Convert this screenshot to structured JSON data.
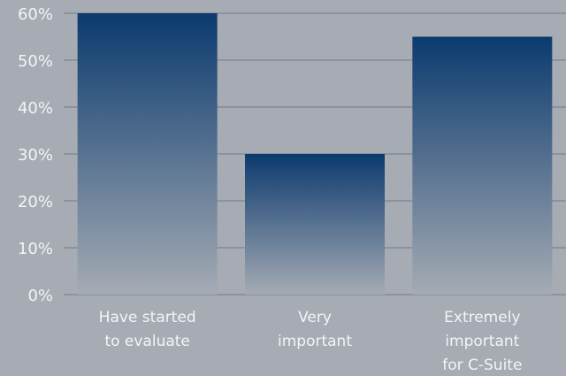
{
  "chart_data": {
    "type": "bar",
    "categories": [
      [
        "Have started",
        "to evaluate"
      ],
      [
        "Very",
        "important"
      ],
      [
        "Extremely",
        "important",
        "for C-Suite"
      ]
    ],
    "values": [
      60,
      30,
      55
    ],
    "y_ticks": [
      "0%",
      "10%",
      "20%",
      "30%",
      "40%",
      "50%",
      "60%"
    ],
    "ylim": [
      0,
      60
    ],
    "grid": true,
    "title": "",
    "xlabel": "",
    "ylabel": "",
    "colors": {
      "background": "#a7abb3",
      "bar_top": "#0b3a6e",
      "bar_bottom": "#a5abb4",
      "gridline": "#7d8591",
      "text": "#f2f4f7"
    }
  }
}
